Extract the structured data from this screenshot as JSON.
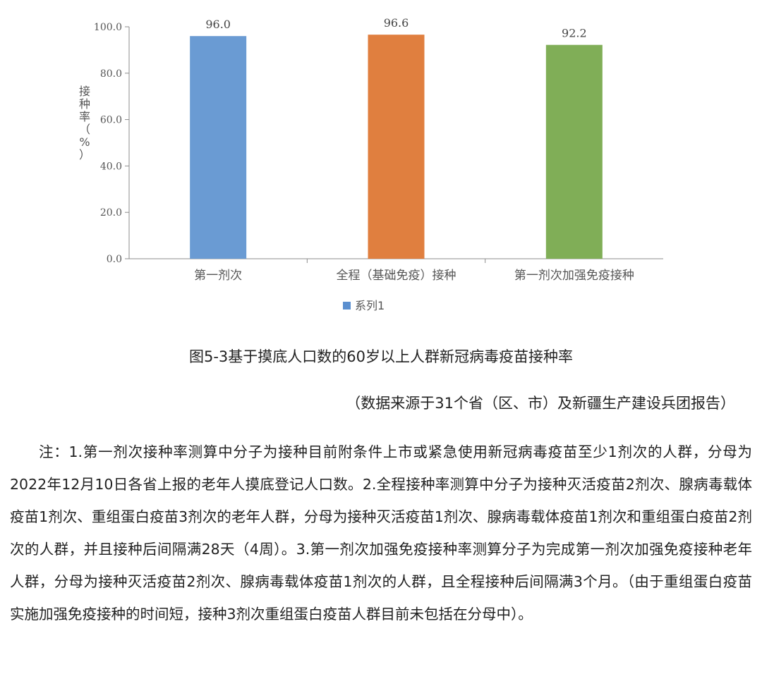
{
  "chart_data": {
    "type": "bar",
    "categories": [
      "第一剂次",
      "全程（基础免疫）接种",
      "第一剂次加强免疫接种"
    ],
    "series": [
      {
        "name": "系列1",
        "values": [
          96.0,
          96.6,
          92.2
        ]
      }
    ],
    "value_labels": [
      "96.0",
      "96.6",
      "92.2"
    ],
    "bar_colors": [
      "#6a9bd3",
      "#e07f3f",
      "#80ae57"
    ],
    "legend_color": "#5b8fcf",
    "ylabel": "接种率（%）",
    "ylim": [
      0,
      100
    ],
    "yticks": [
      "0.0",
      "20.0",
      "40.0",
      "60.0",
      "80.0",
      "100.0"
    ],
    "grid": false,
    "legend_position": "bottom"
  },
  "caption": "图5-3基于摸底人口数的60岁以上人群新冠病毒疫苗接种率",
  "source": "（数据来源于31个省（区、市）及新疆生产建设兵团报告）",
  "note": "注：1.第一剂次接种率测算中分子为接种目前附条件上市或紧急使用新冠病毒疫苗至少1剂次的人群，分母为2022年12月10日各省上报的老年人摸底登记人口数。2.全程接种率测算中分子为接种灭活疫苗2剂次、腺病毒载体疫苗1剂次、重组蛋白疫苗3剂次的老年人群，分母为接种灭活疫苗1剂次、腺病毒载体疫苗1剂次和重组蛋白疫苗2剂次的人群，并且接种后间隔满28天（4周）。3.第一剂次加强免疫接种率测算分子为完成第一剂次加强免疫接种老年人群，分母为接种灭活疫苗2剂次、腺病毒载体疫苗1剂次的人群，且全程接种后间隔满3个月。（由于重组蛋白疫苗实施加强免疫接种的时间短，接种3剂次重组蛋白疫苗人群目前未包括在分母中）。"
}
